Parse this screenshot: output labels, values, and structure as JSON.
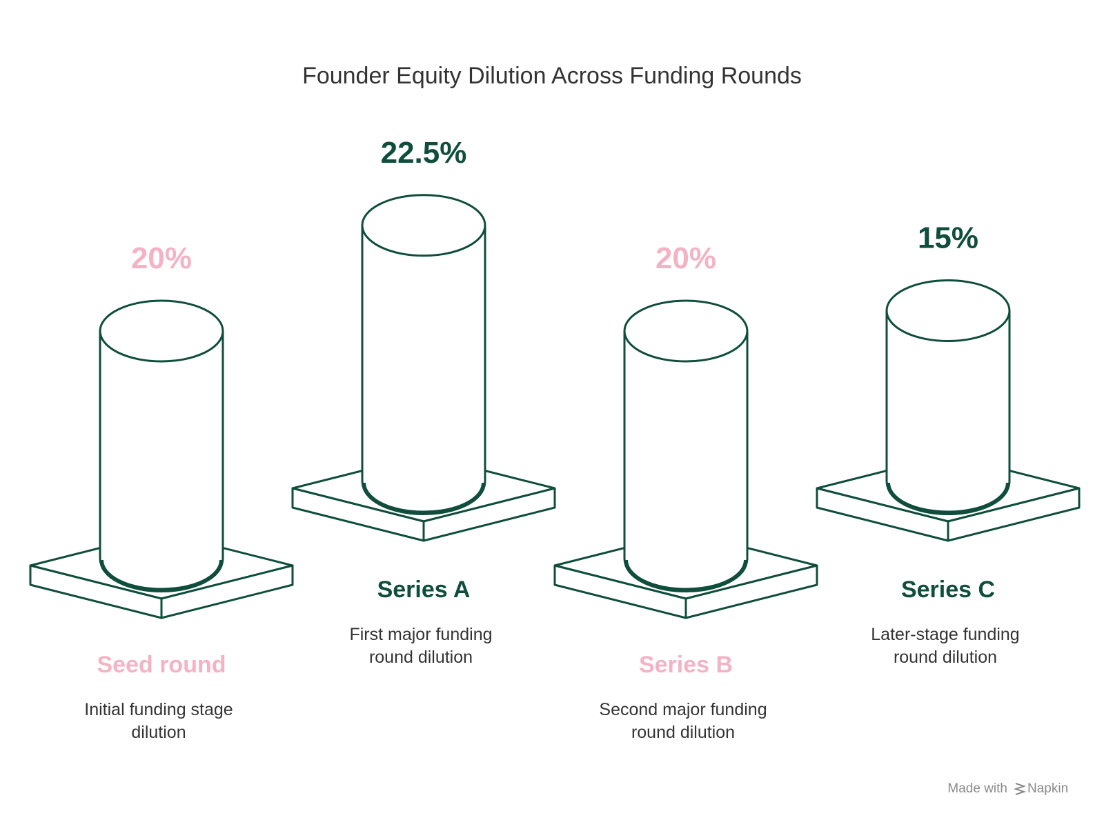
{
  "title": "Founder Equity Dilution Across Funding Rounds",
  "credit": {
    "prefix": "Made with",
    "brand": "Napkin"
  },
  "colors": {
    "pink": "#f3b3c4",
    "green": "#0f4d3c",
    "stroke": "#0f4d3c",
    "text": "#333333"
  },
  "chart_data": {
    "type": "bar",
    "style": "3d-cylinders-on-plinths",
    "title": "Founder Equity Dilution Across Funding Rounds",
    "categories": [
      "Seed round",
      "Series A",
      "Series B",
      "Series C"
    ],
    "values": [
      20,
      22.5,
      20,
      15
    ],
    "value_labels": [
      "20%",
      "22.5%",
      "20%",
      "15%"
    ],
    "descriptions": [
      [
        "Initial funding stage",
        "dilution"
      ],
      [
        "First major funding",
        "round dilution"
      ],
      [
        "Second major funding",
        "round dilution"
      ],
      [
        "Later-stage funding",
        "round dilution"
      ]
    ],
    "accent": [
      "pink",
      "green",
      "pink",
      "green"
    ],
    "label_position": [
      "below",
      "above",
      "below",
      "above"
    ]
  }
}
